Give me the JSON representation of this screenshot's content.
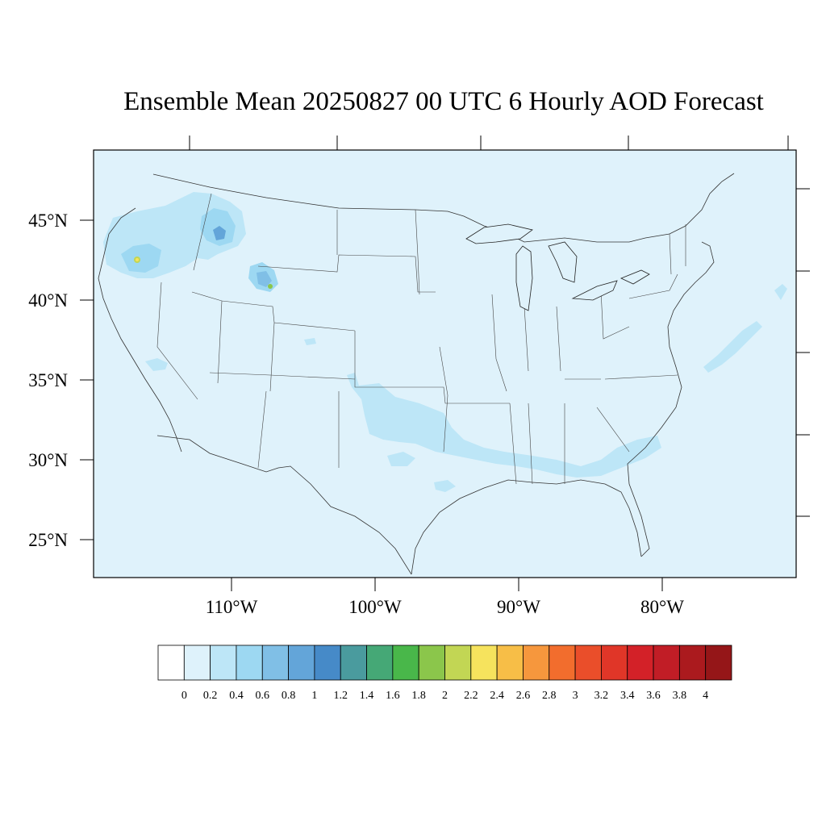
{
  "title": "Ensemble Mean 20250827 00 UTC 6 Hourly AOD Forecast",
  "map": {
    "region": "Contiguous United States",
    "background_color": "#dff2fb",
    "lat_ticks": [
      {
        "label": "45°N",
        "lat": 45
      },
      {
        "label": "40°N",
        "lat": 40
      },
      {
        "label": "35°N",
        "lat": 35
      },
      {
        "label": "30°N",
        "lat": 30
      },
      {
        "label": "25°N",
        "lat": 25
      }
    ],
    "lon_ticks": [
      {
        "label": "110°W",
        "lon": -110
      },
      {
        "label": "100°W",
        "lon": -100
      },
      {
        "label": "90°W",
        "lon": -90
      },
      {
        "label": "80°W",
        "lon": -80
      }
    ],
    "plumes": [
      {
        "area": "Oregon / northern California",
        "aod_max": 2.2
      },
      {
        "area": "Idaho / Montana border",
        "aod_max": 1.2
      },
      {
        "area": "Wyoming / Utah border",
        "aod_max": 2.0
      },
      {
        "area": "southern Nevada",
        "aod_max": 0.6
      },
      {
        "area": "Texas panhandle / Oklahoma / Gulf coast",
        "aod_max": 0.4
      },
      {
        "area": "Atlantic offshore",
        "aod_max": 0.4
      }
    ]
  },
  "colorbar": {
    "labels": [
      "0",
      "0.2",
      "0.4",
      "0.6",
      "0.8",
      "1",
      "1.2",
      "1.4",
      "1.6",
      "1.8",
      "2",
      "2.2",
      "2.4",
      "2.6",
      "2.8",
      "3",
      "3.2",
      "3.4",
      "3.6",
      "3.8",
      "4"
    ],
    "colors": [
      "#ffffff",
      "#def2fb",
      "#bde6f7",
      "#9dd8f2",
      "#80bfe6",
      "#63a5d9",
      "#468ac8",
      "#4a9b9e",
      "#45a876",
      "#49b74a",
      "#8bc64b",
      "#c2d654",
      "#f6e35d",
      "#f7be47",
      "#f6973d",
      "#f26d2d",
      "#ea4e2a",
      "#e03628",
      "#d32128",
      "#c11d26",
      "#ab1a1e",
      "#951618"
    ]
  }
}
